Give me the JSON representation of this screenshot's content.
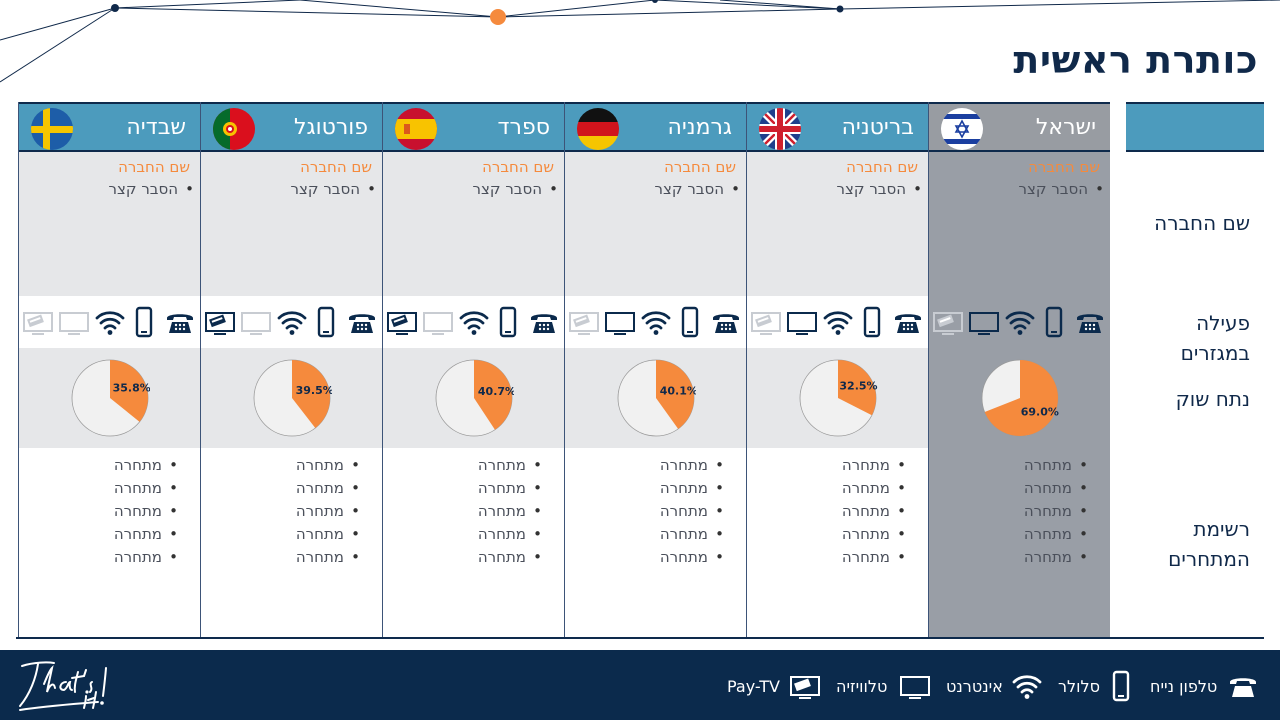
{
  "slide": {
    "title": "כותרת ראשית"
  },
  "row_labels": {
    "company": "שם החברה",
    "devices": "פעילה במגזרים",
    "market": "נתח שוק",
    "competitors_line1": "רשימת",
    "competitors_line2": "המתחרים"
  },
  "countries": [
    {
      "name": "ישראל",
      "flag": "israel",
      "company_name": "שם החברה",
      "company_desc": "הסבר קצר",
      "market_share": 69.0,
      "market_label": "69.0%",
      "devices": {
        "landline": true,
        "mobile": true,
        "internet": true,
        "tv": true,
        "paytv": false
      },
      "competitors": [
        "מתחרה",
        "מתחרה",
        "מתחרה",
        "מתחרה",
        "מתחרה"
      ],
      "highlighted": true
    },
    {
      "name": "בריטניה",
      "flag": "uk",
      "company_name": "שם החברה",
      "company_desc": "הסבר קצר",
      "market_share": 32.5,
      "market_label": "32.5%",
      "devices": {
        "landline": true,
        "mobile": true,
        "internet": true,
        "tv": true,
        "paytv": false
      },
      "competitors": [
        "מתחרה",
        "מתחרה",
        "מתחרה",
        "מתחרה",
        "מתחרה"
      ],
      "highlighted": false
    },
    {
      "name": "גרמניה",
      "flag": "germany",
      "company_name": "שם החברה",
      "company_desc": "הסבר קצר",
      "market_share": 40.1,
      "market_label": "40.1%",
      "devices": {
        "landline": true,
        "mobile": true,
        "internet": true,
        "tv": true,
        "paytv": false
      },
      "competitors": [
        "מתחרה",
        "מתחרה",
        "מתחרה",
        "מתחרה",
        "מתחרה"
      ],
      "highlighted": false
    },
    {
      "name": "ספרד",
      "flag": "spain",
      "company_name": "שם החברה",
      "company_desc": "הסבר קצר",
      "market_share": 40.7,
      "market_label": "40.7%",
      "devices": {
        "landline": true,
        "mobile": true,
        "internet": true,
        "tv": false,
        "paytv": true
      },
      "competitors": [
        "מתחרה",
        "מתחרה",
        "מתחרה",
        "מתחרה",
        "מתחרה"
      ],
      "highlighted": false
    },
    {
      "name": "פורטוגל",
      "flag": "portugal",
      "company_name": "שם החברה",
      "company_desc": "הסבר קצר",
      "market_share": 39.5,
      "market_label": "39.5%",
      "devices": {
        "landline": true,
        "mobile": true,
        "internet": true,
        "tv": false,
        "paytv": true
      },
      "competitors": [
        "מתחרה",
        "מתחרה",
        "מתחרה",
        "מתחרה",
        "מתחרה"
      ],
      "highlighted": false
    },
    {
      "name": "שבדיה",
      "flag": "sweden",
      "company_name": "שם החברה",
      "company_desc": "הסבר קצר",
      "market_share": 35.8,
      "market_label": "35.8%",
      "devices": {
        "landline": true,
        "mobile": true,
        "internet": true,
        "tv": false,
        "paytv": false
      },
      "competitors": [
        "מתחרה",
        "מתחרה",
        "מתחרה",
        "מתחרה",
        "מתחרה"
      ],
      "highlighted": false
    }
  ],
  "legend": [
    {
      "icon": "landline-icon",
      "label": "טלפון נייח"
    },
    {
      "icon": "mobile-icon",
      "label": "סלולר"
    },
    {
      "icon": "wifi-icon",
      "label": "אינטרנט"
    },
    {
      "icon": "tv-icon",
      "label": "טלוויזיה"
    },
    {
      "icon": "paytv-icon",
      "label": "Pay-TV"
    }
  ],
  "colors": {
    "share": "#f58a3d",
    "rest": "#f1f1f1",
    "accent_header": "#4c9bbd",
    "navy": "#0b2a4c",
    "inactive_icon": "#c8ccd2"
  },
  "logo": {
    "text": "That's it!"
  }
}
